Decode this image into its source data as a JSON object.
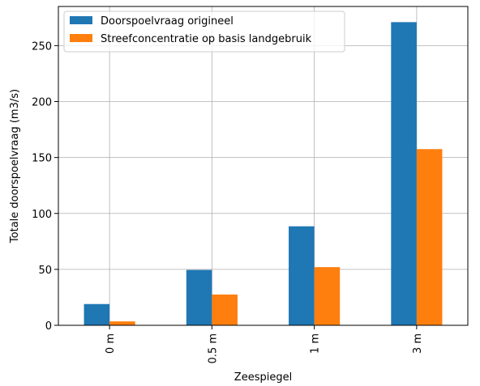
{
  "chart_data": {
    "type": "bar",
    "title": "",
    "xlabel": "Zeespiegel",
    "ylabel": "Totale doorspoelvraag (m3/s)",
    "categories": [
      "0 m",
      "0.5 m",
      "1 m",
      "3 m"
    ],
    "series": [
      {
        "name": "Doorspoelvraag origineel",
        "color": "#1f77b4",
        "values": [
          19,
          49.5,
          88.5,
          271
        ]
      },
      {
        "name": "Streefconcentratie op basis landgebruik",
        "color": "#ff7f0e",
        "values": [
          3.5,
          27.5,
          52,
          157.5
        ]
      }
    ],
    "ylim": [
      0,
      285
    ],
    "yticks": [
      0,
      50,
      100,
      150,
      200,
      250
    ],
    "grid": true,
    "legend_position": "top-left",
    "xtick_rotation": "vertical"
  }
}
